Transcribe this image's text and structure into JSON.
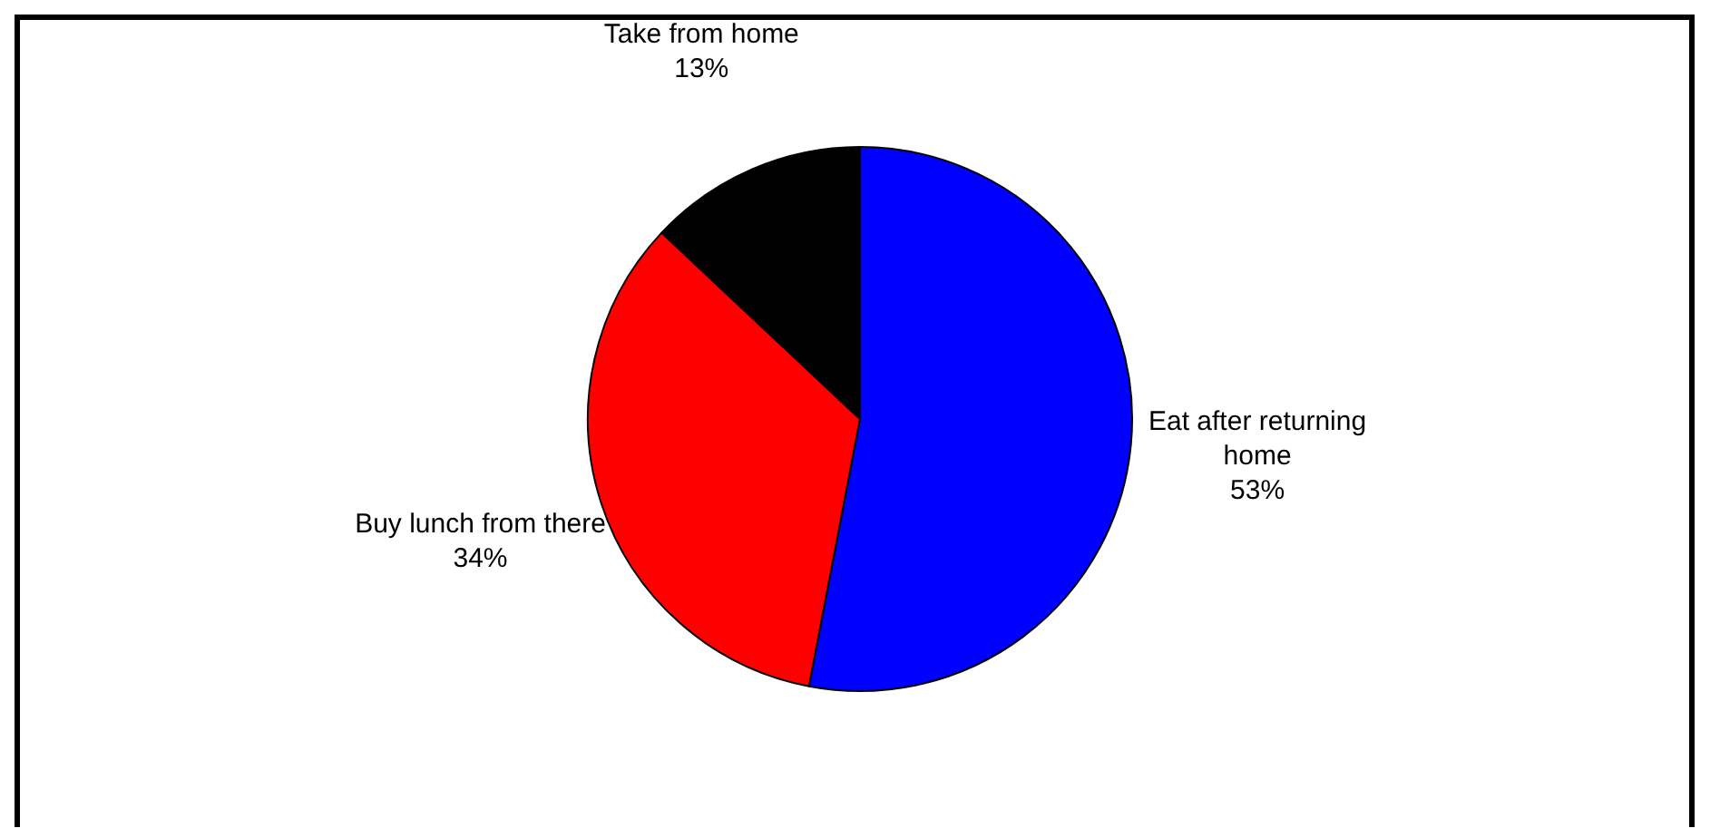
{
  "chart_data": {
    "type": "pie",
    "categories": [
      "Eat after returning home",
      "Buy lunch from there",
      "Take from home"
    ],
    "values": [
      53,
      34,
      13
    ],
    "colors": [
      "#0000ff",
      "#ff0000",
      "#000000"
    ],
    "value_labels": [
      "53%",
      "34%",
      "13%"
    ],
    "legend": false
  }
}
